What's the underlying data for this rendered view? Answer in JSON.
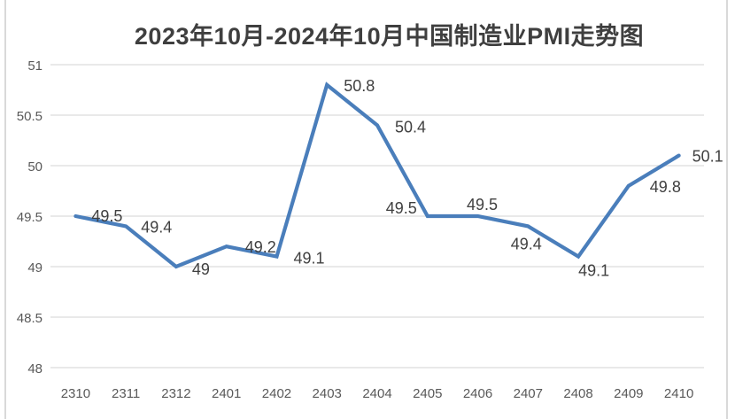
{
  "chart_data": {
    "type": "line",
    "title": "2023年10月-2024年10月中国制造业PMI走势图",
    "categories": [
      "2310",
      "2311",
      "2312",
      "2401",
      "2402",
      "2403",
      "2404",
      "2405",
      "2406",
      "2407",
      "2408",
      "2409",
      "2410"
    ],
    "values": [
      49.5,
      49.4,
      49,
      49.2,
      49.1,
      50.8,
      50.4,
      49.5,
      49.5,
      49.4,
      49.1,
      49.8,
      50.1
    ],
    "data_labels": [
      "49.5",
      "49.4",
      "49",
      "49.2",
      "49.1",
      "50.8",
      "50.4",
      "49.5",
      "49.5",
      "49.4",
      "49.1",
      "49.8",
      "50.1"
    ],
    "xlabel": "",
    "ylabel": "",
    "ylim": [
      48,
      51
    ],
    "y_ticks": [
      "51",
      "50.5",
      "50",
      "49.5",
      "49",
      "48.5",
      "48"
    ],
    "grid": "horizontal",
    "legend": "none",
    "markers": "none",
    "series_name": "PMI"
  },
  "colors": {
    "line": "#4a7ebb",
    "grid": "#dcdcdc",
    "axis_text": "#595959",
    "data_label_text": "#404040",
    "title_text": "#3f3f3f",
    "frame_border": "#d9d9d9",
    "background": "#ffffff"
  }
}
